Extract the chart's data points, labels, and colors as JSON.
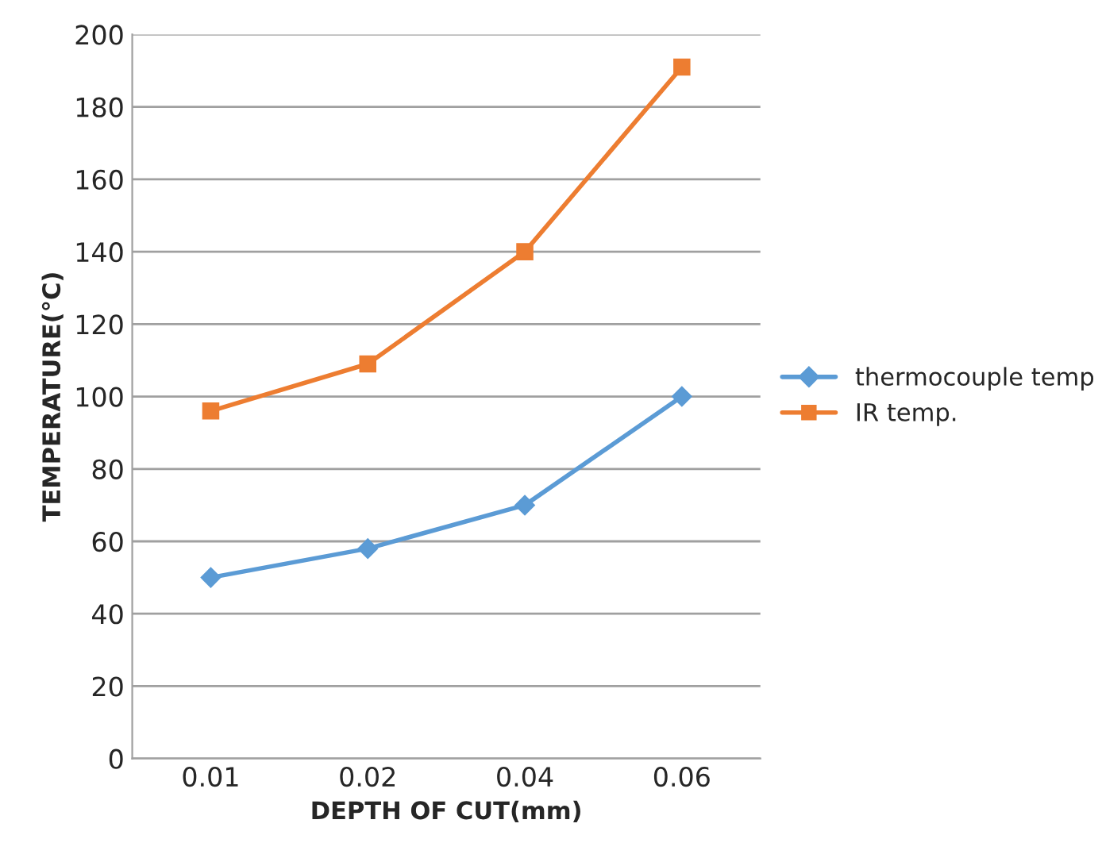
{
  "chart_data": {
    "type": "line",
    "xlabel": "DEPTH OF CUT(mm)",
    "ylabel": "TEMPERATURE(°C)",
    "categories": [
      "0.01",
      "0.02",
      "0.04",
      "0.06"
    ],
    "series": [
      {
        "name": "thermocouple temp",
        "color": "#5b9bd5",
        "marker": "diamond",
        "values": [
          50,
          58,
          70,
          100
        ]
      },
      {
        "name": "IR temp.",
        "color": "#ed7d31",
        "marker": "square",
        "values": [
          96,
          109,
          140,
          191
        ]
      }
    ],
    "ylim": [
      0,
      200
    ],
    "yticks": [
      0,
      20,
      40,
      60,
      80,
      100,
      120,
      140,
      160,
      180,
      200
    ],
    "grid": "y",
    "legend": "right",
    "line_style": "solid"
  }
}
